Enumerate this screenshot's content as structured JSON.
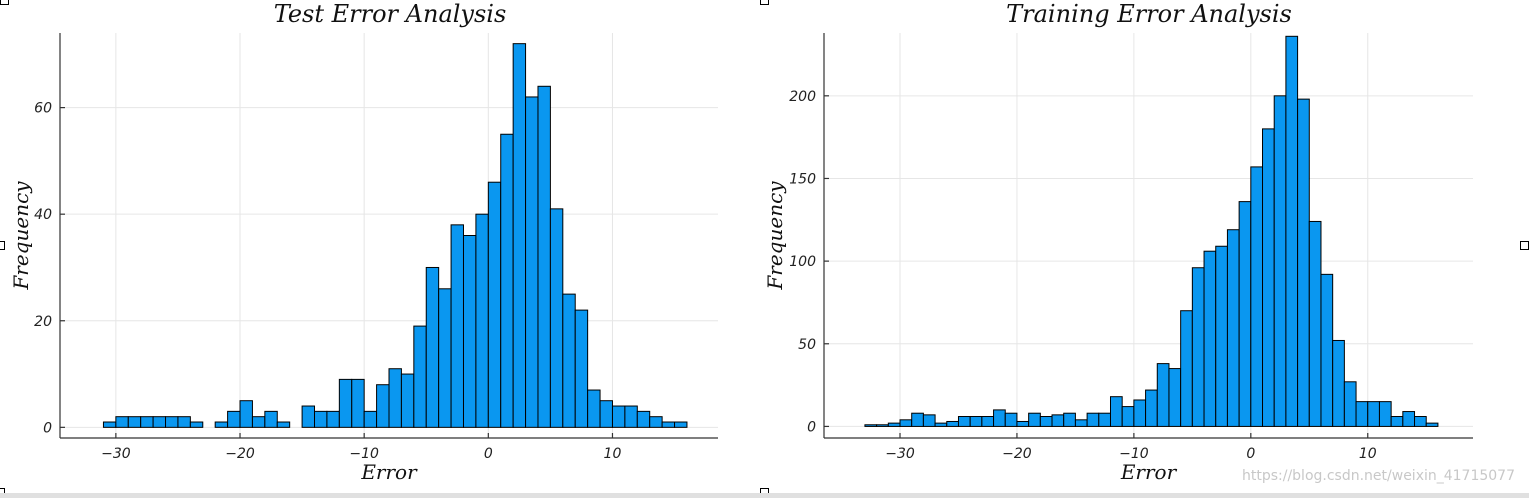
{
  "style": {
    "bar_color": "#0a97f0",
    "edge_color": "#000000"
  },
  "chart_data": [
    {
      "type": "bar",
      "title": "Test Error Analysis",
      "xlabel": "Error",
      "ylabel": "Frequency",
      "xlim": [
        -34.5,
        18.5
      ],
      "ylim": [
        -2,
        74
      ],
      "grid": true,
      "xticks": [
        -30,
        -20,
        -10,
        0,
        10
      ],
      "yticks": [
        0,
        20,
        40,
        60
      ],
      "bin_edges": [
        -31,
        -30,
        -29,
        -28,
        -27,
        -26,
        -25,
        -24,
        -23,
        -22,
        -21,
        -20,
        -19,
        -18,
        -17,
        -16,
        -15,
        -14,
        -13,
        -12,
        -11,
        -10,
        -9,
        -8,
        -7,
        -6,
        -5,
        -4,
        -3,
        -2,
        -1,
        0,
        1,
        2,
        3,
        4,
        5,
        6,
        7,
        8,
        9,
        10,
        11,
        12,
        13,
        14,
        15,
        16
      ],
      "values": [
        1,
        2,
        2,
        2,
        2,
        2,
        2,
        1,
        0,
        1,
        3,
        5,
        2,
        3,
        1,
        0,
        4,
        3,
        3,
        9,
        9,
        3,
        8,
        11,
        10,
        19,
        30,
        26,
        38,
        36,
        40,
        46,
        55,
        72,
        62,
        64,
        41,
        25,
        22,
        7,
        5,
        4,
        4,
        3,
        2,
        1,
        1
      ]
    },
    {
      "type": "bar",
      "title": "Training Error Analysis",
      "xlabel": "Error",
      "ylabel": "Frequency",
      "xlim": [
        -36.5,
        19
      ],
      "ylim": [
        -7,
        238
      ],
      "grid": true,
      "xticks": [
        -30,
        -20,
        -10,
        0,
        10
      ],
      "yticks": [
        0,
        50,
        100,
        150,
        200
      ],
      "bin_edges": [
        -33,
        -32,
        -31,
        -30,
        -29,
        -28,
        -27,
        -26,
        -25,
        -24,
        -23,
        -22,
        -21,
        -20,
        -19,
        -18,
        -17,
        -16,
        -15,
        -14,
        -13,
        -12,
        -11,
        -10,
        -9,
        -8,
        -7,
        -6,
        -5,
        -4,
        -3,
        -2,
        -1,
        0,
        1,
        2,
        3,
        4,
        5,
        6,
        7,
        8,
        9,
        10,
        11,
        12,
        13,
        14,
        15,
        16
      ],
      "values": [
        1,
        1,
        2,
        4,
        8,
        7,
        2,
        3,
        6,
        6,
        6,
        10,
        8,
        3,
        8,
        6,
        7,
        8,
        4,
        8,
        8,
        18,
        12,
        16,
        22,
        38,
        35,
        70,
        96,
        106,
        109,
        119,
        136,
        157,
        180,
        200,
        236,
        198,
        124,
        92,
        52,
        27,
        15,
        15,
        15,
        6,
        9,
        6,
        2
      ]
    }
  ],
  "watermark": "https://blog.csdn.net/weixin_41715077"
}
